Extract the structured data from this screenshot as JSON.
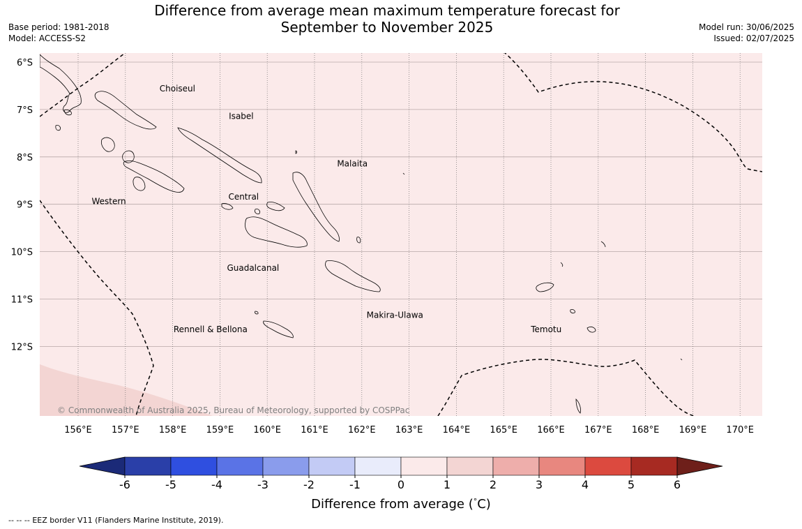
{
  "header": {
    "title_line1": "Difference from average mean maximum temperature forecast for",
    "title_line2": "September to November 2025",
    "base_period": "Base period: 1981-2018",
    "model": "Model: ACCESS-S2",
    "model_run": "Model run: 30/06/2025",
    "issued": "Issued: 02/07/2025"
  },
  "map": {
    "lon_range": [
      155.2,
      170.5
    ],
    "lat_range": [
      -6.0,
      -13.7
    ],
    "lat_ticks": [
      {
        "value": -6,
        "label": "6°S"
      },
      {
        "value": -7,
        "label": "7°S"
      },
      {
        "value": -8,
        "label": "8°S"
      },
      {
        "value": -9,
        "label": "9°S"
      },
      {
        "value": -10,
        "label": "10°S"
      },
      {
        "value": -11,
        "label": "11°S"
      },
      {
        "value": -12,
        "label": "12°S"
      }
    ],
    "lon_ticks": [
      {
        "value": 156,
        "label": "156°E"
      },
      {
        "value": 157,
        "label": "157°E"
      },
      {
        "value": 158,
        "label": "158°E"
      },
      {
        "value": 159,
        "label": "159°E"
      },
      {
        "value": 160,
        "label": "160°E"
      },
      {
        "value": 161,
        "label": "161°E"
      },
      {
        "value": 162,
        "label": "162°E"
      },
      {
        "value": 163,
        "label": "163°E"
      },
      {
        "value": 164,
        "label": "164°E"
      },
      {
        "value": 165,
        "label": "165°E"
      },
      {
        "value": 166,
        "label": "166°E"
      },
      {
        "value": 167,
        "label": "167°E"
      },
      {
        "value": 168,
        "label": "168°E"
      },
      {
        "value": 169,
        "label": "169°E"
      },
      {
        "value": 170,
        "label": "170°E"
      }
    ],
    "regions": [
      {
        "name": "Choiseul",
        "lon": 158.1,
        "lat": -6.62
      },
      {
        "name": "Isabel",
        "lon": 159.45,
        "lat": -7.2
      },
      {
        "name": "Malaita",
        "lon": 161.8,
        "lat": -8.2
      },
      {
        "name": "Western",
        "lon": 156.65,
        "lat": -9.0
      },
      {
        "name": "Central",
        "lon": 159.5,
        "lat": -8.9
      },
      {
        "name": "Guadalcanal",
        "lon": 159.7,
        "lat": -10.4
      },
      {
        "name": "Makira-Ulawa",
        "lon": 162.7,
        "lat": -11.4
      },
      {
        "name": "Rennell & Bellona",
        "lon": 158.8,
        "lat": -11.7
      },
      {
        "name": "Temotu",
        "lon": 165.9,
        "lat": -11.7
      }
    ],
    "fill_color_main": "#fbeaea",
    "fill_color_warm": "#f3d5d3",
    "copyright": "© Commonwealth of Australia 2025, Bureau of Meteorology, supported by COSPPac"
  },
  "colorbar": {
    "ticks": [
      "-6",
      "-5",
      "-4",
      "-3",
      "-2",
      "-1",
      "0",
      "1",
      "2",
      "3",
      "4",
      "5",
      "6"
    ],
    "colors": [
      "#2a3fa8",
      "#2f4fe0",
      "#5a73e6",
      "#8a9cec",
      "#c3cbf5",
      "#e9ecfb",
      "#fbeaea",
      "#f3d5d3",
      "#eeaeab",
      "#e8877f",
      "#dc4a3f",
      "#a72a22"
    ],
    "under_color": "#1b2a78",
    "over_color": "#6e1f1a",
    "label": "Difference from average (",
    "unit_symbol": "°",
    "unit": "C)"
  },
  "footer": {
    "legend_symbol": "--  --  --",
    "legend_text": "EEZ border V11 (Flanders Marine Institute, 2019)."
  }
}
